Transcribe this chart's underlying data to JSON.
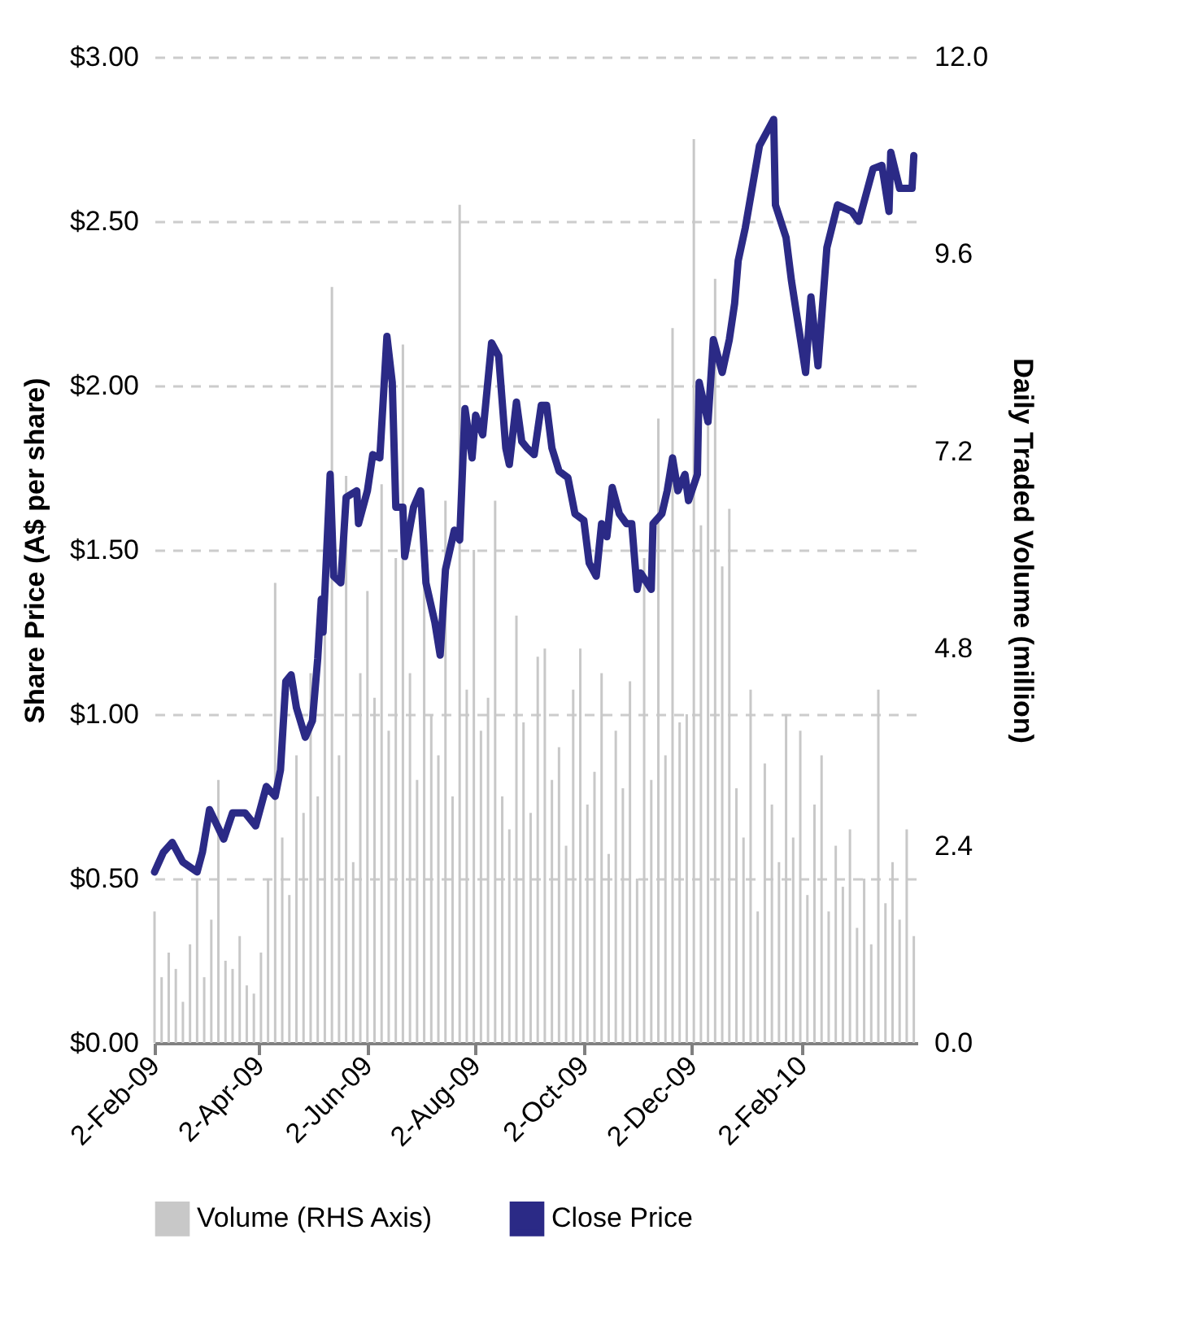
{
  "chart_data": {
    "type": "line",
    "xlabel": null,
    "ylabel": "Share Price (A$ per share)",
    "y2label": "Daily Traded Volume (million)",
    "xlim": [
      "2009-02-02",
      "2010-04-08"
    ],
    "xticks": [
      {
        "value": "2009-02-02",
        "label": "2-Feb-09"
      },
      {
        "value": "2009-04-02",
        "label": "2-Apr-09"
      },
      {
        "value": "2009-06-02",
        "label": "2-Jun-09"
      },
      {
        "value": "2009-08-02",
        "label": "2-Aug-09"
      },
      {
        "value": "2009-10-02",
        "label": "2-Oct-09"
      },
      {
        "value": "2009-12-02",
        "label": "2-Dec-09"
      },
      {
        "value": "2010-02-02",
        "label": "2-Feb-10"
      }
    ],
    "ylim": [
      0,
      3
    ],
    "yticks": [
      {
        "value": 0,
        "label": "$0.00"
      },
      {
        "value": 0.5,
        "label": "$0.50"
      },
      {
        "value": 1,
        "label": "$1.00"
      },
      {
        "value": 1.5,
        "label": "$1.50"
      },
      {
        "value": 2,
        "label": "$2.00"
      },
      {
        "value": 2.5,
        "label": "$2.50"
      },
      {
        "value": 3,
        "label": "$3.00"
      }
    ],
    "y2lim": [
      0,
      12
    ],
    "y2ticks": [
      {
        "value": 0,
        "label": "0.0"
      },
      {
        "value": 2.4,
        "label": "2.4"
      },
      {
        "value": 4.8,
        "label": "4.8"
      },
      {
        "value": 7.2,
        "label": "7.2"
      },
      {
        "value": 9.6,
        "label": "9.6"
      },
      {
        "value": 12,
        "label": "12.0"
      }
    ],
    "grid": "y",
    "legend": "bottom",
    "series": [
      {
        "name": "Volume (RHS Axis)",
        "type": "bar",
        "axis": "y2",
        "color": "#c8c8c8",
        "x": [
          "2009-02-02",
          "2009-02-06",
          "2009-02-10",
          "2009-02-14",
          "2009-02-18",
          "2009-02-22",
          "2009-02-26",
          "2009-03-02",
          "2009-03-06",
          "2009-03-10",
          "2009-03-14",
          "2009-03-18",
          "2009-03-22",
          "2009-03-26",
          "2009-03-30",
          "2009-04-03",
          "2009-04-07",
          "2009-04-11",
          "2009-04-15",
          "2009-04-19",
          "2009-04-23",
          "2009-04-27",
          "2009-05-01",
          "2009-05-05",
          "2009-05-09",
          "2009-05-13",
          "2009-05-17",
          "2009-05-21",
          "2009-05-25",
          "2009-05-29",
          "2009-06-02",
          "2009-06-06",
          "2009-06-10",
          "2009-06-14",
          "2009-06-18",
          "2009-06-22",
          "2009-06-26",
          "2009-06-30",
          "2009-07-04",
          "2009-07-08",
          "2009-07-12",
          "2009-07-16",
          "2009-07-20",
          "2009-07-24",
          "2009-07-28",
          "2009-08-01",
          "2009-08-05",
          "2009-08-09",
          "2009-08-13",
          "2009-08-17",
          "2009-08-21",
          "2009-08-25",
          "2009-08-29",
          "2009-09-02",
          "2009-09-06",
          "2009-09-10",
          "2009-09-14",
          "2009-09-18",
          "2009-09-22",
          "2009-09-26",
          "2009-09-30",
          "2009-10-04",
          "2009-10-08",
          "2009-10-12",
          "2009-10-16",
          "2009-10-20",
          "2009-10-24",
          "2009-10-28",
          "2009-11-01",
          "2009-11-05",
          "2009-11-09",
          "2009-11-13",
          "2009-11-17",
          "2009-11-21",
          "2009-11-25",
          "2009-11-29",
          "2009-12-03",
          "2009-12-07",
          "2009-12-11",
          "2009-12-15",
          "2009-12-19",
          "2009-12-23",
          "2009-12-27",
          "2009-12-31",
          "2010-01-04",
          "2010-01-08",
          "2010-01-12",
          "2010-01-16",
          "2010-01-20",
          "2010-01-24",
          "2010-01-28",
          "2010-02-01",
          "2010-02-05",
          "2010-02-09",
          "2010-02-13",
          "2010-02-17",
          "2010-02-21",
          "2010-02-25",
          "2010-03-01",
          "2010-03-05",
          "2010-03-09",
          "2010-03-13",
          "2010-03-17",
          "2010-03-21",
          "2010-03-25",
          "2010-03-29",
          "2010-04-02",
          "2010-04-06"
        ],
        "values": [
          1.6,
          0.8,
          1.1,
          0.9,
          0.5,
          1.2,
          2.0,
          0.8,
          1.5,
          3.2,
          1.0,
          0.9,
          1.3,
          0.7,
          0.6,
          1.1,
          2.0,
          5.6,
          2.5,
          1.8,
          3.5,
          2.8,
          4.5,
          3.0,
          5.0,
          9.2,
          3.5,
          6.9,
          2.2,
          4.5,
          5.5,
          4.2,
          6.8,
          3.8,
          5.9,
          8.5,
          4.5,
          3.2,
          5.6,
          4.0,
          3.5,
          6.6,
          3.0,
          10.2,
          4.3,
          6.0,
          3.8,
          4.2,
          6.6,
          3.0,
          2.6,
          5.2,
          3.9,
          2.8,
          4.7,
          4.8,
          3.2,
          3.6,
          2.4,
          4.3,
          4.8,
          2.9,
          3.3,
          4.5,
          2.3,
          3.8,
          3.1,
          4.4,
          2.0,
          5.9,
          3.2,
          7.6,
          3.5,
          8.7,
          3.9,
          4.0,
          11.0,
          6.3,
          7.6,
          9.3,
          5.8,
          6.5,
          3.1,
          2.5,
          4.3,
          1.6,
          3.4,
          2.9,
          2.2,
          4.0,
          2.5,
          3.8,
          1.8,
          2.9,
          3.5,
          1.6,
          2.4,
          1.9,
          2.6,
          1.4,
          2.0,
          1.2,
          4.3,
          1.7,
          2.2,
          1.5,
          2.6,
          1.3
        ]
      },
      {
        "name": "Close Price",
        "axis": "y",
        "color": "#2b2a86",
        "x": [
          "2009-02-02",
          "2009-02-07",
          "2009-02-12",
          "2009-02-18",
          "2009-02-26",
          "2009-03-01",
          "2009-03-05",
          "2009-03-13",
          "2009-03-18",
          "2009-03-25",
          "2009-03-31",
          "2009-04-06",
          "2009-04-11",
          "2009-04-14",
          "2009-04-17",
          "2009-04-20",
          "2009-04-23",
          "2009-04-28",
          "2009-05-02",
          "2009-05-05",
          "2009-05-07",
          "2009-05-08",
          "2009-05-12",
          "2009-05-14",
          "2009-05-18",
          "2009-05-21",
          "2009-05-27",
          "2009-05-28",
          "2009-06-02",
          "2009-06-05",
          "2009-06-09",
          "2009-06-13",
          "2009-06-16",
          "2009-06-18",
          "2009-06-22",
          "2009-06-23",
          "2009-06-28",
          "2009-07-02",
          "2009-07-05",
          "2009-07-10",
          "2009-07-13",
          "2009-07-16",
          "2009-07-21",
          "2009-07-24",
          "2009-07-27",
          "2009-07-31",
          "2009-08-02",
          "2009-08-06",
          "2009-08-11",
          "2009-08-15",
          "2009-08-19",
          "2009-08-21",
          "2009-08-25",
          "2009-08-28",
          "2009-08-31",
          "2009-09-04",
          "2009-09-08",
          "2009-09-11",
          "2009-09-14",
          "2009-09-18",
          "2009-09-23",
          "2009-09-27",
          "2009-10-02",
          "2009-10-05",
          "2009-10-09",
          "2009-10-12",
          "2009-10-15",
          "2009-10-18",
          "2009-10-22",
          "2009-10-26",
          "2009-10-29",
          "2009-11-01",
          "2009-11-03",
          "2009-11-09",
          "2009-11-10",
          "2009-11-15",
          "2009-11-18",
          "2009-11-21",
          "2009-11-24",
          "2009-11-28",
          "2009-11-30",
          "2009-12-05",
          "2009-12-06",
          "2009-12-11",
          "2009-12-14",
          "2009-12-19",
          "2009-12-23",
          "2009-12-26",
          "2009-12-28",
          "2010-01-01",
          "2010-01-09",
          "2010-01-17",
          "2010-01-18",
          "2010-01-24",
          "2010-01-27",
          "2010-02-04",
          "2010-02-07",
          "2010-02-11",
          "2010-02-16",
          "2010-02-22",
          "2010-03-02",
          "2010-03-06",
          "2010-03-14",
          "2010-03-19",
          "2010-03-23",
          "2010-03-24",
          "2010-03-29",
          "2010-04-05",
          "2010-04-06"
        ],
        "values": [
          0.52,
          0.58,
          0.61,
          0.55,
          0.52,
          0.58,
          0.71,
          0.62,
          0.7,
          0.7,
          0.66,
          0.78,
          0.75,
          0.83,
          1.1,
          1.12,
          1.02,
          0.93,
          0.98,
          1.17,
          1.35,
          1.25,
          1.73,
          1.42,
          1.4,
          1.66,
          1.68,
          1.58,
          1.68,
          1.79,
          1.78,
          2.15,
          2.01,
          1.63,
          1.63,
          1.48,
          1.63,
          1.68,
          1.4,
          1.28,
          1.18,
          1.44,
          1.56,
          1.53,
          1.93,
          1.78,
          1.91,
          1.85,
          2.13,
          2.09,
          1.81,
          1.76,
          1.95,
          1.83,
          1.81,
          1.79,
          1.94,
          1.94,
          1.81,
          1.74,
          1.72,
          1.61,
          1.59,
          1.46,
          1.42,
          1.58,
          1.54,
          1.69,
          1.61,
          1.58,
          1.58,
          1.38,
          1.43,
          1.38,
          1.58,
          1.61,
          1.68,
          1.78,
          1.68,
          1.73,
          1.65,
          1.73,
          2.01,
          1.89,
          2.14,
          2.04,
          2.14,
          2.25,
          2.38,
          2.48,
          2.73,
          2.81,
          2.55,
          2.45,
          2.32,
          2.04,
          2.27,
          2.06,
          2.42,
          2.55,
          2.53,
          2.5,
          2.66,
          2.67,
          2.53,
          2.71,
          2.6,
          2.6,
          2.7
        ]
      }
    ]
  }
}
